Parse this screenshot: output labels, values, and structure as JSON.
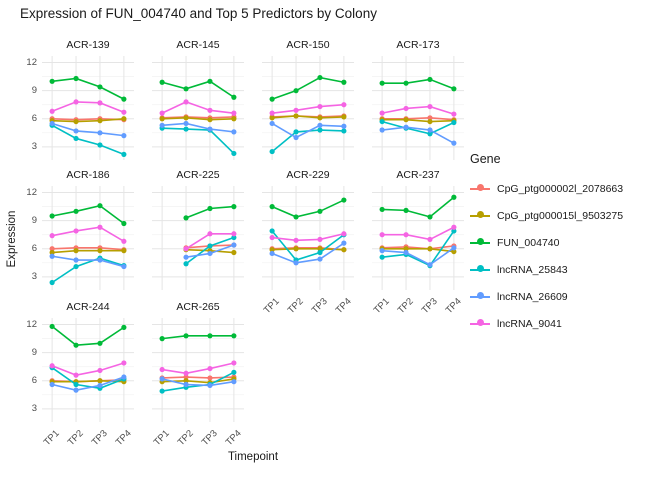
{
  "title": "Expression of FUN_004740 and Top 5 Predictors by Colony",
  "chart_data": {
    "type": "line",
    "faceted_by": "Colony",
    "title": "Expression of FUN_004740 and Top 5 Predictors by Colony",
    "xlabel": "Timepoint",
    "ylabel": "Expression",
    "x": [
      "TP1",
      "TP2",
      "TP3",
      "TP4"
    ],
    "y_ticks": [
      12,
      9,
      6,
      3
    ],
    "y_minor_ticks": [
      10.5,
      7.5,
      4.5
    ],
    "ylim": [
      1.6,
      12.7
    ],
    "grid": true,
    "legend": {
      "title": "Gene",
      "position": "right"
    },
    "genes": [
      {
        "name": "CpG_ptg000002l_2078663",
        "color": "#F8766D"
      },
      {
        "name": "CpG_ptg000015l_9503275",
        "color": "#B79F00"
      },
      {
        "name": "FUN_004740",
        "color": "#00BA38"
      },
      {
        "name": "lncRNA_25843",
        "color": "#00BFC4"
      },
      {
        "name": "lncRNA_26609",
        "color": "#619CFF"
      },
      {
        "name": "lncRNA_9041",
        "color": "#F564E3"
      }
    ],
    "facets": [
      {
        "label": "ACR-139",
        "values": [
          [
            6.0,
            5.9,
            6.0,
            5.9
          ],
          [
            5.8,
            5.7,
            5.8,
            6.0
          ],
          [
            10.0,
            10.3,
            9.4,
            8.1
          ],
          [
            5.3,
            3.9,
            3.2,
            2.2
          ],
          [
            5.5,
            4.7,
            4.5,
            4.2
          ],
          [
            6.8,
            7.8,
            7.7,
            6.7
          ]
        ]
      },
      {
        "label": "ACR-145",
        "values": [
          [
            6.1,
            6.2,
            6.1,
            6.2
          ],
          [
            6.0,
            6.1,
            5.9,
            6.0
          ],
          [
            9.9,
            9.2,
            10.0,
            8.3
          ],
          [
            5.0,
            4.9,
            4.8,
            2.3
          ],
          [
            5.3,
            5.5,
            4.9,
            4.6
          ],
          [
            6.6,
            7.8,
            6.9,
            6.6
          ]
        ]
      },
      {
        "label": "ACR-150",
        "values": [
          [
            6.2,
            6.3,
            6.2,
            6.3
          ],
          [
            6.1,
            6.3,
            6.1,
            6.2
          ],
          [
            8.1,
            9.0,
            10.4,
            9.9
          ],
          [
            2.5,
            4.6,
            4.8,
            4.7
          ],
          [
            5.5,
            4.0,
            5.3,
            5.2
          ],
          [
            6.6,
            6.9,
            7.3,
            7.5
          ]
        ]
      },
      {
        "label": "ACR-173",
        "values": [
          [
            6.0,
            6.0,
            6.1,
            5.9
          ],
          [
            5.9,
            5.9,
            5.7,
            5.8
          ],
          [
            9.8,
            9.8,
            10.2,
            9.2
          ],
          [
            5.7,
            5.0,
            4.4,
            5.6
          ],
          [
            4.8,
            5.1,
            4.8,
            3.4
          ],
          [
            6.6,
            7.1,
            7.3,
            6.5
          ]
        ]
      },
      {
        "label": "ACR-186",
        "values": [
          [
            6.0,
            6.1,
            6.1,
            5.9
          ],
          [
            5.6,
            5.8,
            5.8,
            5.8
          ],
          [
            9.5,
            10.0,
            10.6,
            8.7
          ],
          [
            2.4,
            4.1,
            5.0,
            4.2
          ],
          [
            5.2,
            4.8,
            4.8,
            4.1
          ],
          [
            7.4,
            7.9,
            8.3,
            6.8
          ]
        ]
      },
      {
        "label": "ACR-225",
        "values": [
          [
            null,
            6.1,
            6.3,
            6.4
          ],
          [
            null,
            5.9,
            5.8,
            5.6
          ],
          [
            null,
            9.3,
            10.3,
            10.5
          ],
          [
            null,
            4.4,
            6.3,
            7.2
          ],
          [
            null,
            5.1,
            5.5,
            6.4
          ],
          [
            null,
            6.0,
            7.6,
            7.6
          ]
        ]
      },
      {
        "label": "ACR-229",
        "values": [
          [
            6.0,
            6.1,
            6.1,
            5.9
          ],
          [
            5.9,
            6.0,
            6.0,
            5.9
          ],
          [
            10.5,
            9.4,
            10.0,
            11.2
          ],
          [
            7.9,
            4.8,
            5.6,
            7.5
          ],
          [
            5.5,
            4.5,
            4.9,
            6.6
          ],
          [
            7.2,
            6.9,
            7.0,
            7.6
          ]
        ]
      },
      {
        "label": "ACR-237",
        "values": [
          [
            6.1,
            6.2,
            6.0,
            6.3
          ],
          [
            6.0,
            6.0,
            6.0,
            5.7
          ],
          [
            10.2,
            10.1,
            9.4,
            11.5
          ],
          [
            5.1,
            5.4,
            4.2,
            7.9
          ],
          [
            5.8,
            5.6,
            4.3,
            6.1
          ],
          [
            7.5,
            7.5,
            7.0,
            8.3
          ]
        ]
      },
      {
        "label": "ACR-244",
        "values": [
          [
            6.0,
            5.9,
            6.0,
            6.1
          ],
          [
            5.9,
            5.9,
            6.0,
            5.9
          ],
          [
            11.8,
            9.8,
            10.0,
            11.7
          ],
          [
            7.4,
            5.6,
            5.2,
            6.2
          ],
          [
            5.6,
            5.0,
            5.5,
            6.4
          ],
          [
            7.6,
            6.6,
            7.1,
            7.9
          ]
        ]
      },
      {
        "label": "ACR-265",
        "values": [
          [
            6.3,
            6.4,
            6.3,
            6.4
          ],
          [
            5.9,
            6.0,
            5.8,
            6.2
          ],
          [
            10.5,
            10.8,
            10.8,
            10.8
          ],
          [
            4.9,
            5.3,
            5.6,
            6.9
          ],
          [
            6.2,
            5.6,
            5.5,
            5.9
          ],
          [
            7.2,
            6.8,
            7.3,
            7.9
          ]
        ]
      }
    ]
  }
}
